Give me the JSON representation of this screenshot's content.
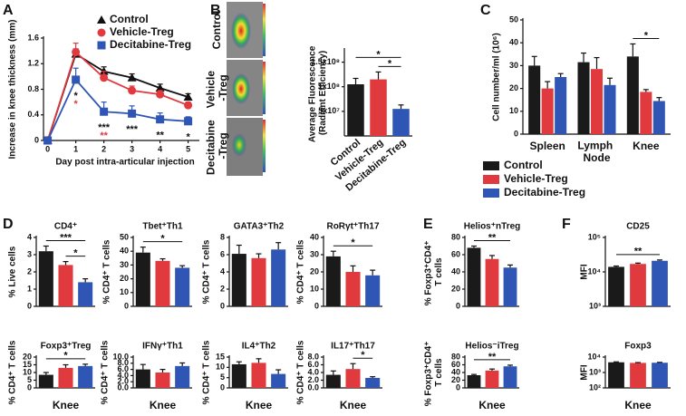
{
  "chart_data": [
    {
      "type": "line",
      "panel": "A",
      "xlabel": "Day post intra-articular injection",
      "ylabel": "Increase in knee thickness (mm)",
      "x": [
        0,
        1,
        2,
        3,
        4,
        5
      ],
      "xlim": [
        -0.15,
        5.4
      ],
      "xticks": [
        0,
        1,
        2,
        3,
        4,
        5
      ],
      "ylim": [
        0,
        1.6
      ],
      "yticks": [
        0,
        0.4,
        0.8,
        1.2,
        1.6
      ],
      "legend": "upper right",
      "series": [
        {
          "name": "Control",
          "color": "#111111",
          "marker": "triangle",
          "values": [
            0,
            1.35,
            1.08,
            0.98,
            0.82,
            0.68
          ],
          "errors": [
            0,
            0.08,
            0.07,
            0.06,
            0.06,
            0.05
          ]
        },
        {
          "name": "Vehicle-Treg",
          "color": "#e0393e",
          "marker": "circle",
          "values": [
            0,
            1.38,
            0.98,
            0.78,
            0.72,
            0.55
          ],
          "errors": [
            0,
            0.14,
            0.1,
            0.07,
            0.06,
            0.05
          ]
        },
        {
          "name": "Decitabine-Treg",
          "color": "#2f55b5",
          "marker": "square",
          "values": [
            0,
            0.95,
            0.45,
            0.42,
            0.33,
            0.3
          ],
          "errors": [
            0,
            0.18,
            0.15,
            0.12,
            0.1,
            0.07
          ]
        }
      ],
      "annotations": [
        {
          "x": 1,
          "text": "*",
          "color": "#111111"
        },
        {
          "x": 1,
          "text": "*",
          "color": "#e0393e"
        },
        {
          "x": 2,
          "text": "***",
          "color": "#111111"
        },
        {
          "x": 2,
          "text": "**",
          "color": "#e0393e"
        },
        {
          "x": 3,
          "text": "***",
          "color": "#111111"
        },
        {
          "x": 4,
          "text": "**",
          "color": "#111111"
        },
        {
          "x": 5,
          "text": "*",
          "color": "#111111"
        }
      ]
    },
    {
      "type": "bar",
      "panel": "B",
      "image_labels": [
        "Control",
        "Vehicle -Treg",
        "Decitabine -Treg"
      ],
      "ylabel": "Average Fluorescence (Radiant Efficiency)",
      "categories": [
        "Control",
        "Vehicle-Treg",
        "Decitabine-Treg"
      ],
      "values": [
        105000000,
        115000000,
        55000000
      ],
      "errors": [
        12000000,
        15000000,
        8000000
      ],
      "colors": [
        "#1a1a1a",
        "#e0393e",
        "#2f55b5"
      ],
      "ylim": [
        0,
        175000000
      ],
      "yticks": [
        {
          "value": 50000000,
          "label": "5x10⁷"
        },
        {
          "value": 100000000,
          "label": "1x10⁸"
        },
        {
          "value": 150000000,
          "label": "1.5x10⁸"
        }
      ],
      "significance": [
        {
          "from": 1,
          "to": 2,
          "label": "*"
        },
        {
          "from": 0,
          "to": 2,
          "label": "*"
        }
      ]
    },
    {
      "type": "bar",
      "panel": "C",
      "ylabel": "Cell number/ml (10⁶)",
      "categories": [
        "Spleen",
        "Lymph Node",
        "Knee"
      ],
      "ylim": [
        0,
        50
      ],
      "yticks": [
        0,
        10,
        20,
        30,
        40,
        50
      ],
      "legend": "below",
      "series": [
        {
          "name": "Control",
          "color": "#1a1a1a",
          "values": [
            30,
            31.5,
            34
          ],
          "errors": [
            4,
            4,
            5.5
          ]
        },
        {
          "name": "Vehicle-Treg",
          "color": "#e0393e",
          "values": [
            20,
            28.5,
            18.5
          ],
          "errors": [
            3,
            5,
            1
          ]
        },
        {
          "name": "Decitabine-Treg",
          "color": "#2f55b5",
          "values": [
            25,
            21.5,
            14.5
          ],
          "errors": [
            1.5,
            3,
            1.5
          ]
        }
      ],
      "significance": [
        {
          "category": 2,
          "from": 0,
          "to": 2,
          "label": "*"
        }
      ]
    },
    {
      "type": "bar",
      "panel": "D",
      "title": "CD4⁺",
      "ylabel": "% Live cells",
      "values": [
        3.2,
        2.4,
        1.4
      ],
      "errors": [
        0.3,
        0.2,
        0.2
      ],
      "colors": [
        "#1a1a1a",
        "#e0393e",
        "#2f55b5"
      ],
      "ylim": [
        0,
        4
      ],
      "yticks": [
        0,
        1,
        2,
        3,
        4
      ],
      "significance": [
        {
          "from": 1,
          "to": 2,
          "label": "*"
        },
        {
          "from": 0,
          "to": 2,
          "label": "***"
        }
      ]
    },
    {
      "type": "bar",
      "title": "Tbet⁺Th1",
      "ylabel": "% CD4⁺ T cells",
      "values": [
        39,
        33,
        28
      ],
      "errors": [
        4,
        1.5,
        1.5
      ],
      "colors": [
        "#1a1a1a",
        "#e0393e",
        "#2f55b5"
      ],
      "ylim": [
        0,
        50
      ],
      "yticks": [
        0,
        10,
        20,
        30,
        40,
        50
      ],
      "significance": [
        {
          "from": 0,
          "to": 2,
          "label": "*"
        }
      ]
    },
    {
      "type": "bar",
      "title": "GATA3⁺Th2",
      "ylabel": "% CD4⁺ T cells",
      "values": [
        6.1,
        5.6,
        6.6
      ],
      "errors": [
        1,
        0.5,
        0.8
      ],
      "colors": [
        "#1a1a1a",
        "#e0393e",
        "#2f55b5"
      ],
      "ylim": [
        0,
        8
      ],
      "yticks": [
        0,
        2,
        4,
        6,
        8
      ]
    },
    {
      "type": "bar",
      "title": "RoRγt⁺Th17",
      "ylabel": "% CD4⁺ T cells",
      "values": [
        29,
        20,
        18
      ],
      "errors": [
        3,
        3.5,
        3
      ],
      "colors": [
        "#1a1a1a",
        "#e0393e",
        "#2f55b5"
      ],
      "ylim": [
        0,
        40
      ],
      "yticks": [
        0,
        10,
        20,
        30,
        40
      ],
      "significance": [
        {
          "from": 0,
          "to": 2,
          "label": "*"
        }
      ]
    },
    {
      "type": "bar",
      "title": "Foxp3⁺Treg",
      "ylabel": "% CD4⁺ T cells",
      "xlabel": "Knee",
      "values": [
        8.5,
        13,
        14.2
      ],
      "errors": [
        1.5,
        2,
        1.2
      ],
      "colors": [
        "#1a1a1a",
        "#e0393e",
        "#2f55b5"
      ],
      "ylim": [
        0,
        20
      ],
      "yticks": [
        0,
        5,
        10,
        15,
        20
      ],
      "significance": [
        {
          "from": 0,
          "to": 2,
          "label": "*"
        }
      ]
    },
    {
      "type": "bar",
      "title": "IFNγ⁺Th1",
      "ylabel": "% CD4⁺ T cells",
      "xlabel": "Knee",
      "values": [
        6,
        5,
        7.1
      ],
      "errors": [
        1.6,
        1,
        1
      ],
      "colors": [
        "#1a1a1a",
        "#e0393e",
        "#2f55b5"
      ],
      "ylim": [
        0,
        10
      ],
      "yticks": [
        {
          "value": 0,
          "label": "0.0"
        },
        {
          "value": 2,
          "label": "2.0"
        },
        {
          "value": 4,
          "label": "4.0"
        },
        {
          "value": 6,
          "label": "6.0"
        },
        {
          "value": 8,
          "label": "8.0"
        },
        {
          "value": 10,
          "label": "10.0"
        }
      ]
    },
    {
      "type": "bar",
      "title": "IL4⁺Th2",
      "ylabel": "% CD4⁺ T cells",
      "xlabel": "Knee",
      "values": [
        11.5,
        12.2,
        6.8
      ],
      "errors": [
        1.2,
        2,
        2
      ],
      "colors": [
        "#1a1a1a",
        "#e0393e",
        "#2f55b5"
      ],
      "ylim": [
        0,
        15
      ],
      "yticks": [
        0,
        5,
        10,
        15
      ]
    },
    {
      "type": "bar",
      "title": "IL17⁺Th17",
      "ylabel": "% CD4⁺ T cells",
      "xlabel": "Knee",
      "values": [
        3.4,
        4.9,
        2.6
      ],
      "errors": [
        1,
        1.4,
        0.3
      ],
      "colors": [
        "#1a1a1a",
        "#e0393e",
        "#2f55b5"
      ],
      "ylim": [
        0,
        8
      ],
      "yticks": [
        {
          "value": 0,
          "label": "0.0"
        },
        {
          "value": 2,
          "label": "2.0"
        },
        {
          "value": 4,
          "label": "4.0"
        },
        {
          "value": 6,
          "label": "6.0"
        },
        {
          "value": 8,
          "label": "8.0"
        }
      ],
      "significance": [
        {
          "from": 1,
          "to": 2,
          "label": "*"
        }
      ]
    },
    {
      "type": "bar",
      "panel": "E",
      "title": "Helios⁺nTreg",
      "ylabel": "% Foxp3⁺CD4⁺ T cells",
      "values": [
        68,
        55,
        45
      ],
      "errors": [
        2,
        4,
        3
      ],
      "colors": [
        "#1a1a1a",
        "#e0393e",
        "#2f55b5"
      ],
      "ylim": [
        0,
        80
      ],
      "yticks": [
        0,
        20,
        40,
        60,
        80
      ],
      "significance": [
        {
          "from": 0,
          "to": 2,
          "label": "**"
        }
      ]
    },
    {
      "type": "bar",
      "title": "Helios⁻iTreg",
      "ylabel": "% Foxp3⁺CD4⁺ T cells",
      "xlabel": "Knee",
      "values": [
        33,
        45,
        56
      ],
      "errors": [
        2,
        4,
        3
      ],
      "colors": [
        "#1a1a1a",
        "#e0393e",
        "#2f55b5"
      ],
      "ylim": [
        0,
        80
      ],
      "yticks": [
        0,
        20,
        40,
        60,
        80
      ],
      "significance": [
        {
          "from": 0,
          "to": 2,
          "label": "**"
        }
      ]
    },
    {
      "type": "bar",
      "panel": "F",
      "title": "CD25",
      "ylabel": "MFI",
      "log": true,
      "values": [
        14000,
        17000,
        21000
      ],
      "errors": [
        800,
        1000,
        1200
      ],
      "colors": [
        "#1a1a1a",
        "#e0393e",
        "#2f55b5"
      ],
      "ylim": [
        1000,
        100000
      ],
      "yticks": [
        {
          "value": 1000,
          "label": "10³"
        },
        {
          "value": 10000,
          "label": "10⁴"
        },
        {
          "value": 100000,
          "label": "10⁵"
        }
      ],
      "significance": [
        {
          "from": 0,
          "to": 2,
          "label": "**"
        }
      ]
    },
    {
      "type": "bar",
      "title": "Foxp3",
      "ylabel": "MFI",
      "xlabel": "Knee",
      "log": true,
      "values": [
        4600,
        4200,
        4300
      ],
      "errors": [
        300,
        200,
        250
      ],
      "colors": [
        "#1a1a1a",
        "#e0393e",
        "#2f55b5"
      ],
      "ylim": [
        100,
        10000
      ],
      "yticks": [
        {
          "value": 100,
          "label": "10²"
        },
        {
          "value": 1000,
          "label": "10³"
        },
        {
          "value": 10000,
          "label": "10⁴"
        }
      ]
    }
  ]
}
